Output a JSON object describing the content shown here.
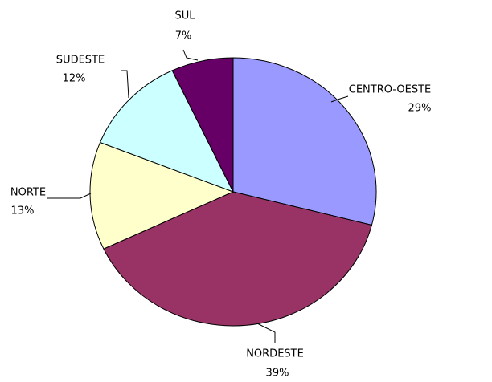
{
  "chart_data": {
    "type": "pie",
    "categories": [
      "CENTRO-OESTE",
      "NORDESTE",
      "NORTE",
      "SUDESTE",
      "SUL"
    ],
    "values": [
      29,
      39,
      13,
      12,
      7
    ],
    "value_labels": [
      "29%",
      "39%",
      "13%",
      "12%",
      "7%"
    ],
    "colors": [
      "#9999ff",
      "#993366",
      "#ffffcc",
      "#ccffff",
      "#660066"
    ]
  }
}
